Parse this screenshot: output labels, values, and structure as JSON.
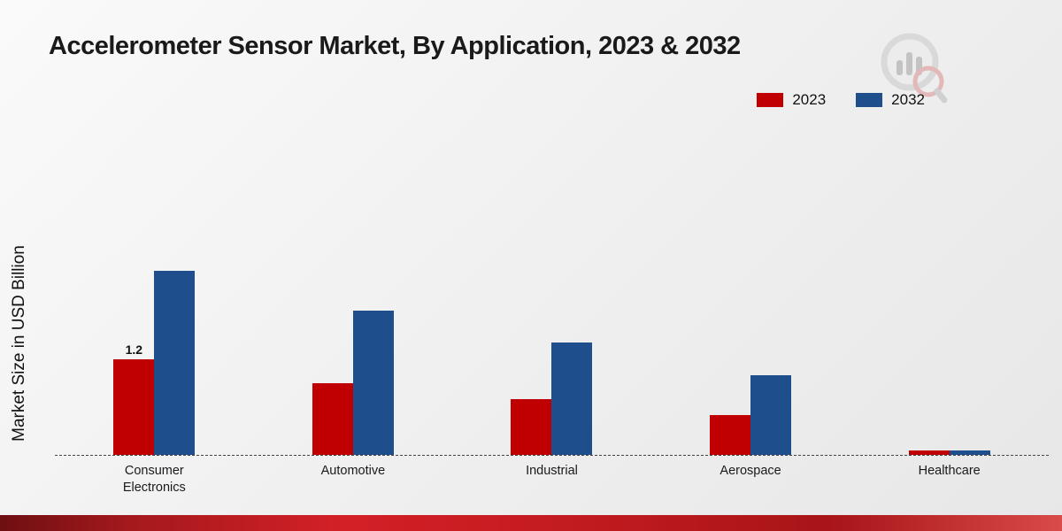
{
  "title": "Accelerometer Sensor Market, By Application, 2023 & 2032",
  "y_axis_label": "Market Size in USD Billion",
  "legend": {
    "items": [
      {
        "label": "2023",
        "color": "#c00000"
      },
      {
        "label": "2032",
        "color": "#1f4e8c"
      }
    ]
  },
  "chart_data": {
    "type": "bar",
    "title": "Accelerometer Sensor Market, By Application, 2023 & 2032",
    "xlabel": "",
    "ylabel": "Market Size in USD Billion",
    "categories": [
      "Consumer Electronics",
      "Automotive",
      "Industrial",
      "Aerospace",
      "Healthcare"
    ],
    "series": [
      {
        "name": "2023",
        "color": "#c00000",
        "values": [
          1.2,
          0.9,
          0.7,
          0.5,
          0.05
        ]
      },
      {
        "name": "2032",
        "color": "#1f4e8c",
        "values": [
          2.3,
          1.8,
          1.4,
          1.0,
          0.06
        ]
      }
    ],
    "ylim": [
      0,
      2.6
    ],
    "grid": false,
    "legend_position": "top-right",
    "baseline_style": "dashed",
    "data_labels": [
      {
        "series": "2023",
        "category": "Consumer Electronics",
        "text": "1.2"
      }
    ]
  }
}
